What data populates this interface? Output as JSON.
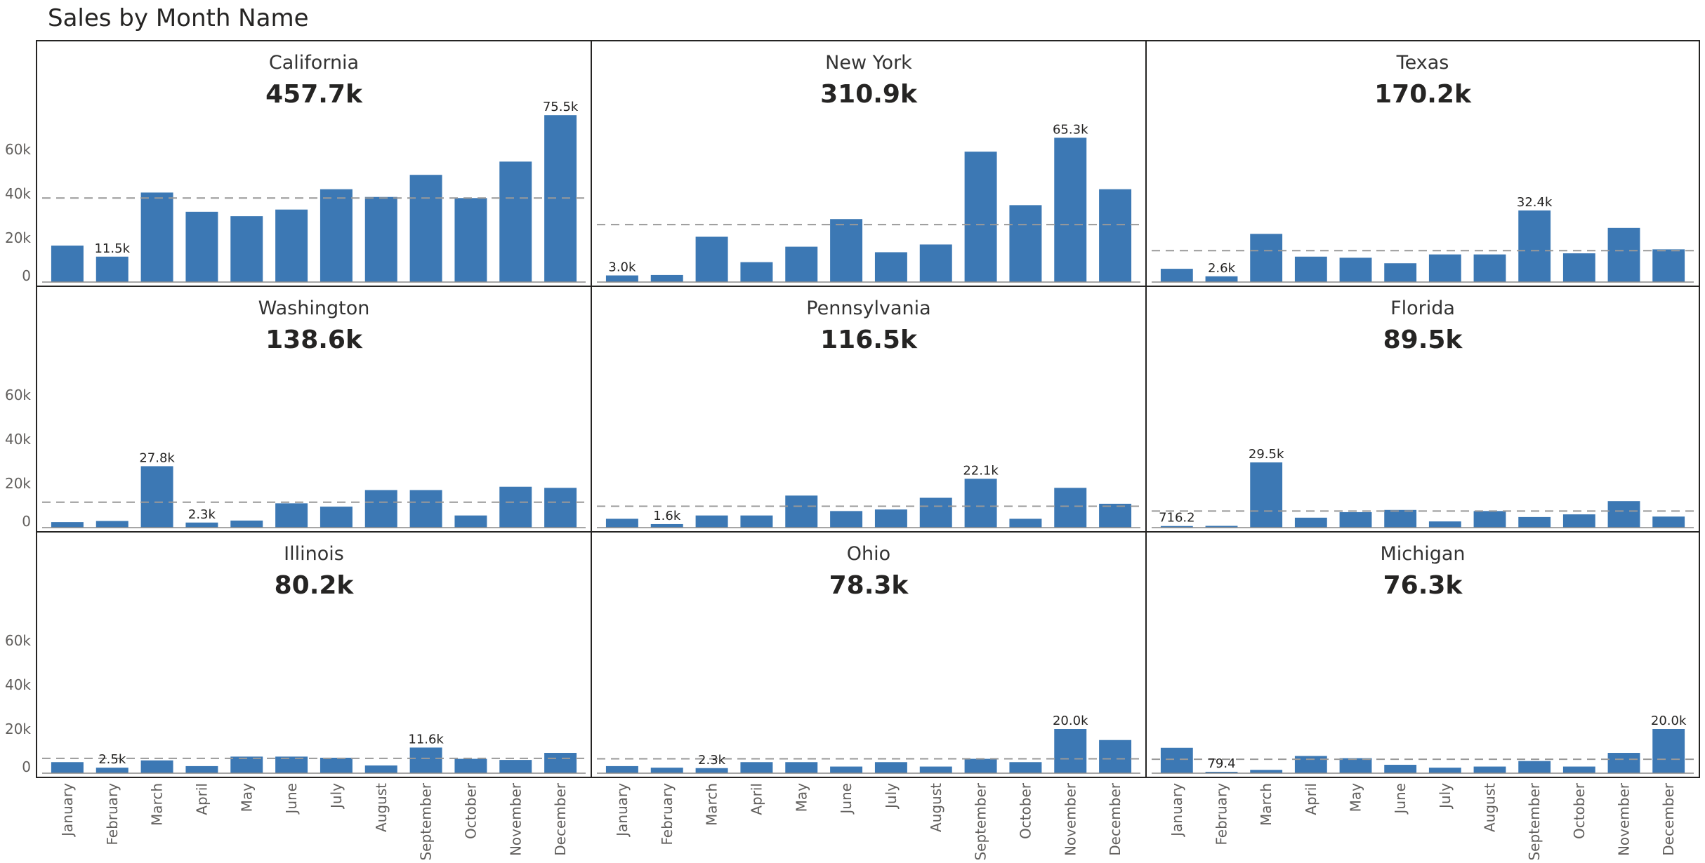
{
  "title": "Sales by Month Name",
  "chart_data": {
    "type": "bar",
    "layout": "small-multiples",
    "title": "Sales by Month Name",
    "categories": [
      "January",
      "February",
      "March",
      "April",
      "May",
      "June",
      "July",
      "August",
      "September",
      "October",
      "November",
      "December"
    ],
    "y_ticks": [
      "0",
      "20k",
      "40k",
      "60k"
    ],
    "ylim": [
      0,
      80000
    ],
    "reference_line": "average (dashed)",
    "colors": {
      "bar": "#3C78B4",
      "average_line": "#999999",
      "border": "#252423"
    },
    "series": [
      {
        "name": "California",
        "total_label": "457.7k",
        "values": [
          16500,
          11500,
          40500,
          31800,
          29800,
          32800,
          42000,
          38500,
          48500,
          38000,
          54500,
          75500
        ],
        "average": 38000,
        "labels": [
          {
            "index": 1,
            "text": "11.5k"
          },
          {
            "index": 11,
            "text": "75.5k"
          }
        ]
      },
      {
        "name": "New York",
        "total_label": "310.9k",
        "values": [
          3000,
          3200,
          20500,
          9000,
          16000,
          28500,
          13500,
          17000,
          59000,
          34800,
          65300,
          42000
        ],
        "average": 26000,
        "labels": [
          {
            "index": 0,
            "text": "3.0k"
          },
          {
            "index": 10,
            "text": "65.3k"
          }
        ]
      },
      {
        "name": "Texas",
        "total_label": "170.2k",
        "values": [
          6000,
          2600,
          21800,
          11500,
          11000,
          8500,
          12500,
          12500,
          32400,
          13000,
          24500,
          14800
        ],
        "average": 14200,
        "labels": [
          {
            "index": 1,
            "text": "2.6k"
          },
          {
            "index": 8,
            "text": "32.4k"
          }
        ]
      },
      {
        "name": "Washington",
        "total_label": "138.6k",
        "values": [
          2500,
          3000,
          27800,
          2300,
          3200,
          11000,
          9500,
          17000,
          17000,
          5500,
          18500,
          18000
        ],
        "average": 11500,
        "labels": [
          {
            "index": 2,
            "text": "27.8k"
          },
          {
            "index": 3,
            "text": "2.3k"
          }
        ]
      },
      {
        "name": "Pennsylvania",
        "total_label": "116.5k",
        "values": [
          4000,
          1600,
          5500,
          5500,
          14500,
          7500,
          8200,
          13500,
          22100,
          4000,
          18000,
          10800
        ],
        "average": 9700,
        "labels": [
          {
            "index": 1,
            "text": "1.6k"
          },
          {
            "index": 8,
            "text": "22.1k"
          }
        ]
      },
      {
        "name": "Florida",
        "total_label": "89.5k",
        "values": [
          716.2,
          800,
          29500,
          4500,
          7000,
          8000,
          2800,
          7500,
          4800,
          6000,
          12000,
          5000
        ],
        "average": 7500,
        "labels": [
          {
            "index": 0,
            "text": "716.2"
          },
          {
            "index": 2,
            "text": "29.5k"
          }
        ]
      },
      {
        "name": "Illinois",
        "total_label": "80.2k",
        "values": [
          5000,
          2500,
          5800,
          3200,
          7500,
          7500,
          7000,
          3500,
          11600,
          6500,
          6000,
          9200
        ],
        "average": 6700,
        "labels": [
          {
            "index": 1,
            "text": "2.5k"
          },
          {
            "index": 8,
            "text": "11.6k"
          }
        ]
      },
      {
        "name": "Ohio",
        "total_label": "78.3k",
        "values": [
          3200,
          2500,
          2300,
          5000,
          5000,
          3000,
          5000,
          3000,
          6500,
          5000,
          20000,
          15000
        ],
        "average": 6500,
        "labels": [
          {
            "index": 2,
            "text": "2.3k"
          },
          {
            "index": 10,
            "text": "20.0k"
          }
        ]
      },
      {
        "name": "Michigan",
        "total_label": "76.3k",
        "values": [
          11500,
          79.4,
          1500,
          7800,
          6800,
          3800,
          2500,
          3000,
          5500,
          3000,
          9200,
          20000
        ],
        "average": 6300,
        "labels": [
          {
            "index": 1,
            "text": "79.4"
          },
          {
            "index": 11,
            "text": "20.0k"
          }
        ]
      }
    ]
  }
}
